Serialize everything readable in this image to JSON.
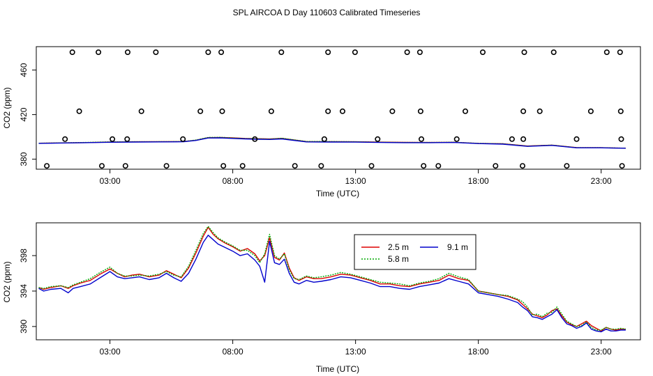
{
  "title": "SPL AIRCOA D  Day 110603  Calibrated Timeseries",
  "colors": {
    "2.5 m": "#dd0000",
    "5.8 m": "#00aa00",
    "9.1 m": "#0000cc",
    "points": "#000000"
  },
  "chart_data": [
    {
      "type": "scatter",
      "title": "",
      "xlabel": "Time (UTC)",
      "ylabel": "CO2 (ppm)",
      "xlim": [
        0,
        24.6
      ],
      "ylim": [
        371,
        481
      ],
      "x_ticks": [
        3,
        8,
        13,
        18,
        23
      ],
      "x_tick_labels": [
        "03:00",
        "08:00",
        "13:00",
        "18:00",
        "23:00"
      ],
      "y_ticks": [
        380,
        420,
        460
      ],
      "y_tick_labels": [
        "380",
        "420",
        "460"
      ],
      "grid": false,
      "points": {
        "name": "cal points",
        "x": [
          1.47,
          2.53,
          3.72,
          4.87,
          7.0,
          7.53,
          9.98,
          11.88,
          12.98,
          15.1,
          15.62,
          18.18,
          19.87,
          21.07,
          23.23,
          23.77,
          1.75,
          4.28,
          6.68,
          7.57,
          9.57,
          11.88,
          12.47,
          14.5,
          15.65,
          17.47,
          19.83,
          20.5,
          22.58,
          23.8,
          1.17,
          3.1,
          3.7,
          5.97,
          8.9,
          11.73,
          13.9,
          15.68,
          17.12,
          19.37,
          19.83,
          22.0,
          23.82,
          0.43,
          2.67,
          3.63,
          5.3,
          7.62,
          8.4,
          10.53,
          11.6,
          13.65,
          15.77,
          16.37,
          18.7,
          19.8,
          21.6,
          23.85
        ],
        "y": [
          476,
          476,
          476,
          476,
          476,
          476,
          476,
          476,
          476,
          476,
          476,
          476,
          476,
          476,
          476,
          476,
          423,
          423,
          423,
          423,
          423,
          423,
          423,
          423,
          423,
          423,
          423,
          423,
          423,
          423,
          398,
          398,
          398,
          398,
          398,
          398,
          398,
          398,
          398,
          398,
          398,
          398,
          398,
          374,
          374,
          374,
          374,
          374,
          374,
          374,
          374,
          374,
          374,
          374,
          374,
          374,
          374,
          374
        ]
      },
      "series": [
        {
          "name": "2.5 m",
          "x": [
            0.1,
            1,
            2,
            3,
            4,
            5,
            6,
            6.5,
            7,
            7.5,
            8,
            8.5,
            9,
            9.5,
            10,
            11,
            12,
            13,
            14,
            15,
            16,
            17,
            18,
            19,
            20,
            21,
            22,
            23,
            24
          ],
          "y": [
            394.3,
            394.6,
            394.9,
            395.4,
            395.6,
            395.7,
            395.9,
            397,
            399.3,
            399.5,
            399.1,
            398.6,
            398.4,
            398.1,
            398.7,
            395.8,
            395.7,
            395.6,
            395.3,
            395.1,
            395.0,
            395.2,
            394.2,
            393.8,
            391.8,
            392.6,
            390.4,
            390.3,
            389.9
          ]
        },
        {
          "name": "5.8 m",
          "x": [
            0.1,
            1,
            2,
            3,
            4,
            5,
            6,
            6.5,
            7,
            7.5,
            8,
            8.5,
            9,
            9.5,
            10,
            11,
            12,
            13,
            14,
            15,
            16,
            17,
            18,
            19,
            20,
            21,
            22,
            23,
            24
          ],
          "y": [
            394.3,
            394.6,
            395.0,
            395.5,
            395.6,
            395.7,
            395.8,
            397.2,
            399.5,
            399.6,
            399.0,
            398.5,
            398.3,
            398.0,
            398.8,
            395.9,
            395.8,
            395.6,
            395.2,
            395.0,
            395.0,
            395.2,
            394.2,
            393.8,
            391.7,
            392.6,
            390.3,
            390.3,
            389.9
          ]
        },
        {
          "name": "9.1 m",
          "x": [
            0.1,
            1,
            2,
            3,
            4,
            5,
            6,
            6.5,
            7,
            7.5,
            8,
            8.5,
            9,
            9.5,
            10,
            11,
            12,
            13,
            14,
            15,
            16,
            17,
            18,
            19,
            20,
            21,
            22,
            23,
            24
          ],
          "y": [
            394.2,
            394.5,
            394.8,
            395.2,
            395.4,
            395.5,
            395.6,
            396.8,
            399.0,
            399.1,
            398.6,
            398.2,
            397.9,
            397.7,
            398.2,
            395.5,
            395.4,
            395.3,
            395.0,
            394.8,
            394.8,
            395.0,
            394.0,
            393.5,
            391.5,
            392.4,
            390.2,
            390.2,
            389.8
          ]
        }
      ]
    },
    {
      "type": "line",
      "title": "",
      "xlabel": "Time (UTC)",
      "ylabel": "CO2 (ppm)",
      "xlim": [
        0,
        24.6
      ],
      "ylim": [
        388.5,
        401.7
      ],
      "x_ticks": [
        3,
        8,
        13,
        18,
        23
      ],
      "x_tick_labels": [
        "03:00",
        "08:00",
        "13:00",
        "18:00",
        "23:00"
      ],
      "y_ticks": [
        390,
        394,
        398
      ],
      "y_tick_labels": [
        "390",
        "394",
        "398"
      ],
      "grid": false,
      "legend": {
        "position": "top-center",
        "entries": [
          "2.5 m",
          "5.8 m",
          "9.1 m"
        ]
      },
      "series": [
        {
          "name": "2.5 m",
          "x": [
            0.1,
            0.3,
            0.6,
            1.0,
            1.3,
            1.5,
            1.8,
            2.2,
            2.6,
            3.0,
            3.3,
            3.6,
            3.9,
            4.2,
            4.6,
            5.0,
            5.3,
            5.6,
            5.9,
            6.2,
            6.5,
            6.8,
            7.0,
            7.2,
            7.4,
            7.7,
            8.0,
            8.3,
            8.6,
            8.9,
            9.1,
            9.3,
            9.5,
            9.7,
            9.9,
            10.1,
            10.3,
            10.5,
            10.7,
            11.0,
            11.3,
            11.6,
            12.0,
            12.4,
            12.8,
            13.2,
            13.6,
            14.0,
            14.4,
            14.8,
            15.2,
            15.6,
            16.0,
            16.4,
            16.8,
            17.2,
            17.6,
            18.0,
            18.4,
            18.8,
            19.2,
            19.6,
            19.8,
            20.0,
            20.2,
            20.4,
            20.6,
            20.8,
            21.0,
            21.2,
            21.4,
            21.6,
            21.8,
            22.0,
            22.2,
            22.4,
            22.6,
            22.8,
            23.0,
            23.2,
            23.4,
            23.6,
            23.8,
            24.0
          ],
          "y": [
            394.4,
            394.2,
            394.4,
            394.6,
            394.3,
            394.6,
            394.9,
            395.2,
            395.9,
            396.5,
            396.0,
            395.6,
            395.8,
            395.9,
            395.6,
            395.8,
            396.3,
            395.9,
            395.5,
            396.6,
            398.3,
            400.2,
            401.2,
            400.4,
            399.9,
            399.4,
            399.0,
            398.5,
            398.8,
            398.2,
            397.4,
            398.0,
            400.0,
            397.8,
            397.5,
            398.3,
            396.6,
            395.5,
            395.2,
            395.6,
            395.4,
            395.4,
            395.6,
            395.9,
            395.8,
            395.5,
            395.2,
            394.8,
            394.8,
            394.6,
            394.5,
            394.8,
            395.0,
            395.2,
            395.8,
            395.4,
            395.2,
            394.0,
            393.8,
            393.6,
            393.4,
            393.0,
            392.5,
            392.0,
            391.4,
            391.2,
            391.0,
            391.3,
            391.8,
            392.0,
            391.2,
            390.5,
            390.2,
            390.0,
            390.3,
            390.6,
            390.1,
            389.8,
            389.5,
            389.9,
            389.7,
            389.6,
            389.7,
            389.7
          ]
        },
        {
          "name": "5.8 m",
          "x": [
            0.1,
            0.3,
            0.6,
            1.0,
            1.3,
            1.5,
            1.8,
            2.2,
            2.6,
            3.0,
            3.3,
            3.6,
            3.9,
            4.2,
            4.6,
            5.0,
            5.3,
            5.6,
            5.9,
            6.2,
            6.5,
            6.8,
            7.0,
            7.2,
            7.4,
            7.7,
            8.0,
            8.3,
            8.6,
            8.9,
            9.1,
            9.3,
            9.5,
            9.7,
            9.9,
            10.1,
            10.3,
            10.5,
            10.7,
            11.0,
            11.3,
            11.6,
            12.0,
            12.4,
            12.8,
            13.2,
            13.6,
            14.0,
            14.4,
            14.8,
            15.2,
            15.6,
            16.0,
            16.4,
            16.8,
            17.2,
            17.6,
            18.0,
            18.4,
            18.8,
            19.2,
            19.6,
            19.8,
            20.0,
            20.2,
            20.4,
            20.6,
            20.8,
            21.0,
            21.2,
            21.4,
            21.6,
            21.8,
            22.0,
            22.2,
            22.4,
            22.6,
            22.8,
            23.0,
            23.2,
            23.4,
            23.6,
            23.8,
            24.0
          ],
          "y": [
            394.4,
            394.3,
            394.5,
            394.6,
            394.4,
            394.7,
            395.0,
            395.4,
            396.1,
            396.7,
            396.0,
            395.7,
            395.7,
            395.8,
            395.7,
            395.9,
            396.2,
            395.8,
            395.6,
            396.8,
            398.6,
            400.5,
            401.3,
            400.6,
            400.0,
            399.5,
            399.1,
            398.6,
            398.6,
            398.0,
            397.2,
            398.2,
            400.4,
            398.0,
            397.6,
            398.2,
            396.4,
            395.4,
            395.3,
            395.7,
            395.5,
            395.6,
            395.8,
            396.1,
            395.9,
            395.6,
            395.3,
            395.0,
            394.9,
            394.8,
            394.6,
            394.9,
            395.1,
            395.4,
            396.0,
            395.6,
            395.3,
            394.0,
            393.8,
            393.6,
            393.5,
            393.1,
            392.8,
            392.2,
            391.3,
            391.4,
            391.1,
            391.5,
            391.6,
            392.2,
            391.4,
            390.6,
            390.3,
            390.0,
            390.1,
            390.5,
            389.9,
            389.6,
            389.6,
            389.9,
            389.7,
            389.7,
            389.8,
            389.7
          ]
        },
        {
          "name": "9.1 m",
          "x": [
            0.1,
            0.3,
            0.6,
            1.0,
            1.3,
            1.5,
            1.8,
            2.2,
            2.6,
            3.0,
            3.3,
            3.6,
            3.9,
            4.2,
            4.6,
            5.0,
            5.3,
            5.6,
            5.9,
            6.2,
            6.5,
            6.8,
            7.0,
            7.2,
            7.4,
            7.7,
            8.0,
            8.3,
            8.6,
            8.9,
            9.1,
            9.3,
            9.5,
            9.7,
            9.9,
            10.1,
            10.3,
            10.5,
            10.7,
            11.0,
            11.3,
            11.6,
            12.0,
            12.4,
            12.8,
            13.2,
            13.6,
            14.0,
            14.4,
            14.8,
            15.2,
            15.6,
            16.0,
            16.4,
            16.8,
            17.2,
            17.6,
            18.0,
            18.4,
            18.8,
            19.2,
            19.6,
            19.8,
            20.0,
            20.2,
            20.4,
            20.6,
            20.8,
            21.0,
            21.2,
            21.4,
            21.6,
            21.8,
            22.0,
            22.2,
            22.4,
            22.6,
            22.8,
            23.0,
            23.2,
            23.4,
            23.6,
            23.8,
            24.0
          ],
          "y": [
            394.3,
            394.0,
            394.2,
            394.3,
            393.8,
            394.3,
            394.5,
            394.8,
            395.5,
            396.2,
            395.6,
            395.4,
            395.5,
            395.6,
            395.3,
            395.5,
            396.0,
            395.5,
            395.1,
            396.0,
            397.6,
            399.5,
            400.3,
            399.8,
            399.3,
            398.9,
            398.5,
            398.0,
            398.2,
            397.5,
            396.8,
            395.0,
            399.6,
            397.2,
            397.0,
            397.6,
            396.0,
            395.0,
            394.8,
            395.2,
            395.0,
            395.1,
            395.3,
            395.6,
            395.5,
            395.2,
            394.9,
            394.5,
            394.5,
            394.3,
            394.2,
            394.5,
            394.7,
            394.9,
            395.4,
            395.1,
            394.8,
            393.8,
            393.6,
            393.4,
            393.1,
            392.7,
            392.2,
            391.8,
            391.1,
            391.0,
            390.8,
            391.1,
            391.4,
            391.9,
            391.0,
            390.3,
            390.1,
            389.8,
            390.0,
            390.4,
            389.7,
            389.5,
            389.4,
            389.7,
            389.5,
            389.5,
            389.6,
            389.6
          ]
        }
      ]
    }
  ]
}
